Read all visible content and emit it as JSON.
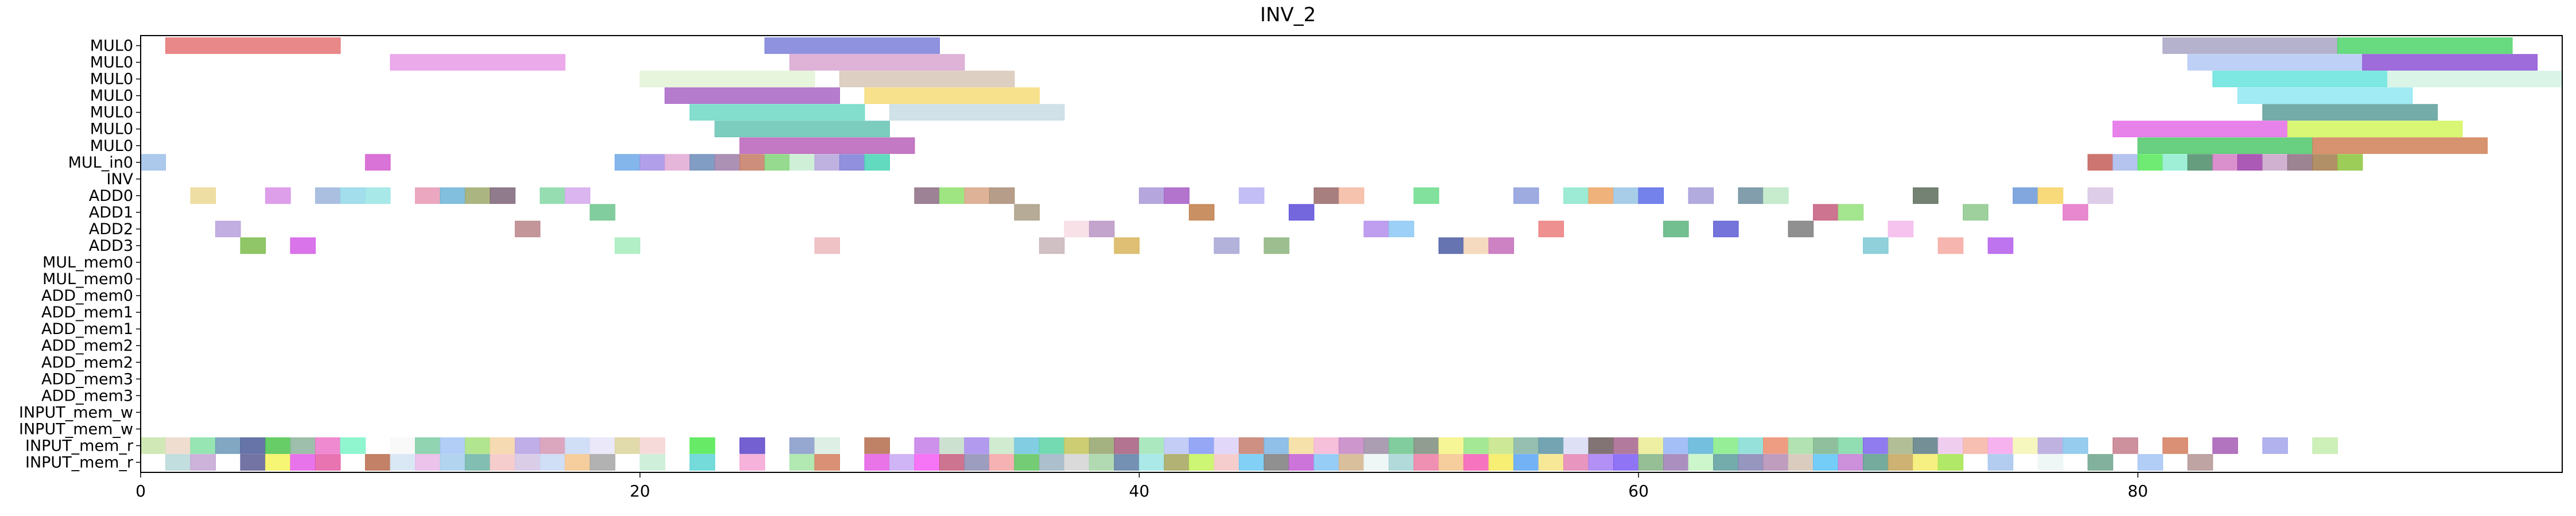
{
  "chart_data": {
    "type": "gantt",
    "title": "INV_2",
    "xlim": [
      0,
      97
    ],
    "x_ticks": [
      0,
      20,
      40,
      60,
      80
    ],
    "x_tick_labels": [
      "0",
      "20",
      "40",
      "60",
      "80"
    ],
    "y_labels": [
      "MUL0",
      "MUL0",
      "MUL0",
      "MUL0",
      "MUL0",
      "MUL0",
      "MUL0",
      "MUL_in0",
      "INV",
      "ADD0",
      "ADD1",
      "ADD2",
      "ADD3",
      "MUL_mem0",
      "MUL_mem0",
      "ADD_mem0",
      "ADD_mem1",
      "ADD_mem1",
      "ADD_mem2",
      "ADD_mem2",
      "ADD_mem3",
      "ADD_mem3",
      "INPUT_mem_w",
      "INPUT_mem_w",
      "INPUT_mem_r",
      "INPUT_mem_r"
    ],
    "grid": false,
    "bars": [
      {
        "row": 0,
        "start": 1,
        "end": 8,
        "color": "#e57373"
      },
      {
        "row": 0,
        "start": 25,
        "end": 32,
        "color": "#7b7fd8"
      },
      {
        "row": 0,
        "start": 81,
        "end": 88,
        "color": "#a8a4c4"
      },
      {
        "row": 0,
        "start": 88,
        "end": 95,
        "color": "#4dd36a"
      },
      {
        "row": 1,
        "start": 10,
        "end": 17,
        "color": "#e89be6"
      },
      {
        "row": 1,
        "start": 26,
        "end": 33,
        "color": "#d8a6d0"
      },
      {
        "row": 1,
        "start": 82,
        "end": 89,
        "color": "#b4c8f4"
      },
      {
        "row": 1,
        "start": 89,
        "end": 96,
        "color": "#8e52d6"
      },
      {
        "row": 2,
        "start": 20,
        "end": 27,
        "color": "#e2f3d6"
      },
      {
        "row": 2,
        "start": 28,
        "end": 35,
        "color": "#d8c7b8"
      },
      {
        "row": 2,
        "start": 83,
        "end": 90,
        "color": "#66e3dc"
      },
      {
        "row": 2,
        "start": 90,
        "end": 97,
        "color": "#d4f2e4"
      },
      {
        "row": 3,
        "start": 21,
        "end": 28,
        "color": "#a865c6"
      },
      {
        "row": 3,
        "start": 29,
        "end": 36,
        "color": "#f6dc78"
      },
      {
        "row": 3,
        "start": 84,
        "end": 91,
        "color": "#8fe8f2"
      },
      {
        "row": 4,
        "start": 22,
        "end": 29,
        "color": "#6ed8c4"
      },
      {
        "row": 4,
        "start": 30,
        "end": 37,
        "color": "#c8dce4"
      },
      {
        "row": 4,
        "start": 85,
        "end": 92,
        "color": "#5c9e9a"
      },
      {
        "row": 5,
        "start": 23,
        "end": 30,
        "color": "#66c4b4"
      },
      {
        "row": 5,
        "start": 79,
        "end": 86,
        "color": "#e46ce8"
      },
      {
        "row": 5,
        "start": 86,
        "end": 93,
        "color": "#d2f45c"
      },
      {
        "row": 6,
        "start": 24,
        "end": 31,
        "color": "#b862b8"
      },
      {
        "row": 6,
        "start": 80,
        "end": 87,
        "color": "#4ec86a"
      },
      {
        "row": 6,
        "start": 87,
        "end": 94,
        "color": "#d08056"
      },
      {
        "row": 7,
        "start": 0,
        "end": 1,
        "color": "#9ec0e8"
      },
      {
        "row": 7,
        "start": 9,
        "end": 10,
        "color": "#d45ad0"
      },
      {
        "row": 7,
        "start": 19,
        "end": 20,
        "color": "#6ea8e8"
      },
      {
        "row": 7,
        "start": 20,
        "end": 21,
        "color": "#a48ee6"
      },
      {
        "row": 7,
        "start": 21,
        "end": 22,
        "color": "#e0a8d4"
      },
      {
        "row": 7,
        "start": 22,
        "end": 23,
        "color": "#6c8cb8"
      },
      {
        "row": 7,
        "start": 23,
        "end": 24,
        "color": "#9e7ea8"
      },
      {
        "row": 7,
        "start": 24,
        "end": 25,
        "color": "#c47a64"
      },
      {
        "row": 7,
        "start": 25,
        "end": 26,
        "color": "#82d47a"
      },
      {
        "row": 7,
        "start": 26,
        "end": 27,
        "color": "#c8ecd0"
      },
      {
        "row": 7,
        "start": 27,
        "end": 28,
        "color": "#b4a4dc"
      },
      {
        "row": 7,
        "start": 28,
        "end": 29,
        "color": "#7c7cd8"
      },
      {
        "row": 7,
        "start": 29,
        "end": 30,
        "color": "#46d4b4"
      },
      {
        "row": 7,
        "start": 78,
        "end": 79,
        "color": "#c45e58"
      },
      {
        "row": 7,
        "start": 79,
        "end": 80,
        "color": "#a8b8ec"
      },
      {
        "row": 7,
        "start": 80,
        "end": 81,
        "color": "#56e85a"
      },
      {
        "row": 7,
        "start": 81,
        "end": 82,
        "color": "#8eecd0"
      },
      {
        "row": 7,
        "start": 82,
        "end": 83,
        "color": "#4c8c68"
      },
      {
        "row": 7,
        "start": 83,
        "end": 84,
        "color": "#d27cc4"
      },
      {
        "row": 7,
        "start": 84,
        "end": 85,
        "color": "#9c3ea8"
      },
      {
        "row": 7,
        "start": 85,
        "end": 86,
        "color": "#c8a4c8"
      },
      {
        "row": 7,
        "start": 86,
        "end": 87,
        "color": "#8c6e80"
      },
      {
        "row": 7,
        "start": 87,
        "end": 88,
        "color": "#a47c4c"
      },
      {
        "row": 7,
        "start": 88,
        "end": 89,
        "color": "#8cc43c"
      },
      {
        "row": 9,
        "start": 2,
        "end": 3,
        "color": "#ecd894"
      },
      {
        "row": 9,
        "start": 5,
        "end": 6,
        "color": "#d88ee6"
      },
      {
        "row": 9,
        "start": 7,
        "end": 8,
        "color": "#9cb4dc"
      },
      {
        "row": 9,
        "start": 8,
        "end": 9,
        "color": "#92d8e8"
      },
      {
        "row": 9,
        "start": 9,
        "end": 10,
        "color": "#9ae4e4"
      },
      {
        "row": 9,
        "start": 11,
        "end": 12,
        "color": "#e898b4"
      },
      {
        "row": 9,
        "start": 12,
        "end": 13,
        "color": "#6cb4d8"
      },
      {
        "row": 9,
        "start": 13,
        "end": 14,
        "color": "#9ca86c"
      },
      {
        "row": 9,
        "start": 14,
        "end": 15,
        "color": "#7c6478"
      },
      {
        "row": 9,
        "start": 16,
        "end": 17,
        "color": "#84d8a4"
      },
      {
        "row": 9,
        "start": 17,
        "end": 18,
        "color": "#d4a8ec"
      },
      {
        "row": 9,
        "start": 31,
        "end": 32,
        "color": "#8c6c84"
      },
      {
        "row": 9,
        "start": 32,
        "end": 33,
        "color": "#8ee06c"
      },
      {
        "row": 9,
        "start": 33,
        "end": 34,
        "color": "#d8a484"
      },
      {
        "row": 9,
        "start": 34,
        "end": 35,
        "color": "#a88c74"
      },
      {
        "row": 9,
        "start": 40,
        "end": 41,
        "color": "#a898d8"
      },
      {
        "row": 9,
        "start": 41,
        "end": 42,
        "color": "#a45cc4"
      },
      {
        "row": 9,
        "start": 44,
        "end": 45,
        "color": "#b8b4f4"
      },
      {
        "row": 9,
        "start": 47,
        "end": 48,
        "color": "#986868"
      },
      {
        "row": 9,
        "start": 48,
        "end": 49,
        "color": "#f4b8a0"
      },
      {
        "row": 9,
        "start": 51,
        "end": 52,
        "color": "#6cdc8c"
      },
      {
        "row": 9,
        "start": 55,
        "end": 56,
        "color": "#8c9cdc"
      },
      {
        "row": 9,
        "start": 57,
        "end": 58,
        "color": "#8ce8cc"
      },
      {
        "row": 9,
        "start": 58,
        "end": 59,
        "color": "#eca464"
      },
      {
        "row": 9,
        "start": 59,
        "end": 60,
        "color": "#98c4e4"
      },
      {
        "row": 9,
        "start": 60,
        "end": 61,
        "color": "#5c6ce8"
      },
      {
        "row": 9,
        "start": 62,
        "end": 63,
        "color": "#a49cd8"
      },
      {
        "row": 9,
        "start": 64,
        "end": 65,
        "color": "#6c8c9c"
      },
      {
        "row": 9,
        "start": 65,
        "end": 66,
        "color": "#bce8c4"
      },
      {
        "row": 9,
        "start": 71,
        "end": 72,
        "color": "#5c6c5c"
      },
      {
        "row": 9,
        "start": 75,
        "end": 76,
        "color": "#6c98d8"
      },
      {
        "row": 9,
        "start": 76,
        "end": 77,
        "color": "#f8d464"
      },
      {
        "row": 9,
        "start": 78,
        "end": 79,
        "color": "#d8c4e4"
      },
      {
        "row": 10,
        "start": 18,
        "end": 19,
        "color": "#6cc48c"
      },
      {
        "row": 10,
        "start": 35,
        "end": 36,
        "color": "#a89c84"
      },
      {
        "row": 10,
        "start": 42,
        "end": 43,
        "color": "#c07c48"
      },
      {
        "row": 10,
        "start": 46,
        "end": 47,
        "color": "#5c4cd8"
      },
      {
        "row": 10,
        "start": 67,
        "end": 68,
        "color": "#c45c7c"
      },
      {
        "row": 10,
        "start": 68,
        "end": 69,
        "color": "#94e07c"
      },
      {
        "row": 10,
        "start": 73,
        "end": 74,
        "color": "#8cc88c"
      },
      {
        "row": 10,
        "start": 77,
        "end": 78,
        "color": "#e474c8"
      },
      {
        "row": 11,
        "start": 3,
        "end": 4,
        "color": "#b8a0dc"
      },
      {
        "row": 11,
        "start": 15,
        "end": 16,
        "color": "#b88488"
      },
      {
        "row": 11,
        "start": 37,
        "end": 38,
        "color": "#f8dce4"
      },
      {
        "row": 11,
        "start": 38,
        "end": 39,
        "color": "#b894c4"
      },
      {
        "row": 11,
        "start": 49,
        "end": 50,
        "color": "#b48cec"
      },
      {
        "row": 11,
        "start": 50,
        "end": 51,
        "color": "#8cc8f4"
      },
      {
        "row": 11,
        "start": 56,
        "end": 57,
        "color": "#ec7c7c"
      },
      {
        "row": 11,
        "start": 61,
        "end": 62,
        "color": "#5cb47c"
      },
      {
        "row": 11,
        "start": 63,
        "end": 64,
        "color": "#5c5cd4"
      },
      {
        "row": 11,
        "start": 66,
        "end": 67,
        "color": "#7c7c7c"
      },
      {
        "row": 11,
        "start": 70,
        "end": 71,
        "color": "#f4b8ec"
      },
      {
        "row": 12,
        "start": 4,
        "end": 5,
        "color": "#7cbc4c"
      },
      {
        "row": 12,
        "start": 6,
        "end": 7,
        "color": "#d45ce8"
      },
      {
        "row": 12,
        "start": 19,
        "end": 20,
        "color": "#a4ecbc"
      },
      {
        "row": 12,
        "start": 27,
        "end": 28,
        "color": "#ecb8bc"
      },
      {
        "row": 12,
        "start": 36,
        "end": 37,
        "color": "#c8b4b8"
      },
      {
        "row": 12,
        "start": 39,
        "end": 40,
        "color": "#d8b45c"
      },
      {
        "row": 12,
        "start": 43,
        "end": 44,
        "color": "#a4a4d4"
      },
      {
        "row": 12,
        "start": 45,
        "end": 46,
        "color": "#8cb47c"
      },
      {
        "row": 12,
        "start": 52,
        "end": 53,
        "color": "#4c5ca4"
      },
      {
        "row": 12,
        "start": 53,
        "end": 54,
        "color": "#f4d4b4"
      },
      {
        "row": 12,
        "start": 54,
        "end": 55,
        "color": "#c46cb8"
      },
      {
        "row": 12,
        "start": 69,
        "end": 70,
        "color": "#7cc8d4"
      },
      {
        "row": 12,
        "start": 72,
        "end": 73,
        "color": "#f4a8a0"
      },
      {
        "row": 12,
        "start": 74,
        "end": 75,
        "color": "#b45cec"
      }
    ],
    "input_mem_r_top_colors": [
      "#c8e4a8",
      "#ecd8c8",
      "#84e0a4",
      "#6c98b8",
      "#4c5c98",
      "#4cc44c",
      "#8cb49c",
      "#ec74c8",
      "#7cf4c8",
      "#ffffff",
      "#f8f8f8",
      "#7ccca4",
      "#a4c4f4",
      "#a4e07c",
      "#f4d4a4",
      "#b4a0e4",
      "#d498b4",
      "#c8d8f4",
      "#e8e4f8",
      "#dcd49c",
      "#f4d4d4",
      "#ffffff",
      "#4ce84c",
      "#ffffff",
      "#5c44c8",
      "#ffffff",
      "#8498c8",
      "#d8ece0",
      "#ffffff",
      "#b46c4c",
      "#ffffff",
      "#c47ce8",
      "#c4dcc8",
      "#a488ec",
      "#c8e8c8",
      "#6cc4dc",
      "#5cd4a4",
      "#c4c45c",
      "#94a46c",
      "#a45c7c",
      "#9ce4b4",
      "#b8c4f4",
      "#8498f4",
      "#dcd0f8",
      "#c47c6c",
      "#7cb4e4",
      "#f4dc9c",
      "#f4b4d4",
      "#c484c4",
      "#9c8ca4",
      "#6cc48c",
      "#7c8c7c",
      "#f4f484",
      "#94e484",
      "#c4e484",
      "#84b4a4",
      "#5c94a4",
      "#d8dcf4",
      "#6c5c5c",
      "#a4648c",
      "#ecec94",
      "#94b4f4",
      "#5cb4d8",
      "#84ec84",
      "#84dcd4",
      "#ec8c6c",
      "#a4dca4",
      "#7cb48c",
      "#7cd8a4",
      "#7c64ec",
      "#a4b484",
      "#5c7c84",
      "#ecc4ec",
      "#f4b4a4",
      "#f4a4ec",
      "#f4f4b4",
      "#b4a4dc",
      "#84c4ec",
      "#ffffff",
      "#c47c8c",
      "#ffffff",
      "#d47c5c",
      "#ffffff",
      "#a45cb4",
      "#ffffff",
      "#a4a4ec",
      "#ffffff",
      "#c4ecac"
    ],
    "input_mem_r_bottom_colors": [
      "#ffffff",
      "#b8d8d8",
      "#c4a4d4",
      "#ffffff",
      "#5c5c94",
      "#f4f45c",
      "#e45ce8",
      "#e45ca4",
      "#ffffff",
      "#b86c4c",
      "#d4e4f4",
      "#e8b8e8",
      "#a4ccec",
      "#6cb4a4",
      "#f4c4c4",
      "#d4c4e4",
      "#c8d8f4",
      "#f4c48c",
      "#a4a4a4",
      "#ffffff",
      "#c8ecd4",
      "#ffffff",
      "#5cd4d4",
      "#ffffff",
      "#f4a4d4",
      "#ffffff",
      "#a4e4a4",
      "#d47c5c",
      "#ffffff",
      "#e45ce4",
      "#c8a8f4",
      "#f45cf4",
      "#c45c7c",
      "#8c8cb4",
      "#f4a4a4",
      "#5cc45c",
      "#9cb4c4",
      "#d4d4d4",
      "#a4d4a4",
      "#5c7ca4",
      "#9ce4e4",
      "#a4a45c",
      "#c4f45c",
      "#f4c4c4",
      "#6cc8f4",
      "#7c7c7c",
      "#c45cd4",
      "#84c4f4",
      "#d4b48c",
      "#ecf4f4",
      "#a4d4d4",
      "#ec7ca4",
      "#f4c48c",
      "#f45cb4",
      "#f4ec5c",
      "#5ca4f4",
      "#f4e484",
      "#e484b4",
      "#a47cf4",
      "#7c5cf4",
      "#84b484",
      "#9c7cb4",
      "#c4f4c4",
      "#5c9c9c",
      "#8484b4",
      "#b48cb4",
      "#d4c4b4",
      "#5cc4f4",
      "#c47cd4",
      "#5c9c8c",
      "#c4a45c",
      "#f4ec6c",
      "#a4e44c",
      "#ffffff",
      "#a4c4ec",
      "#ffffff",
      "#ecf4f4",
      "#ffffff",
      "#6ca48c",
      "#ffffff",
      "#a4c4f4",
      "#ffffff",
      "#b49494"
    ]
  }
}
